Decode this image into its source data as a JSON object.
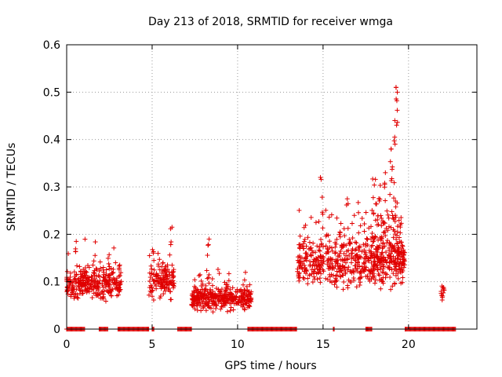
{
  "chart_data": {
    "type": "scatter",
    "title": "Day 213 of 2018, SRMTID for receiver wmga",
    "xlabel": "GPS time / hours",
    "ylabel": "SRMTID / TECUs",
    "xlim": [
      0,
      24
    ],
    "ylim": [
      0,
      0.6
    ],
    "x_ticks": [
      0,
      5,
      10,
      15,
      20
    ],
    "y_ticks": [
      0,
      0.1,
      0.2,
      0.3,
      0.4,
      0.5,
      0.6
    ],
    "x_tick_labels": [
      "0",
      "5",
      "10",
      "15",
      "20"
    ],
    "y_tick_labels": [
      "0",
      "0.1",
      "0.2",
      "0.3",
      "0.4",
      "0.5",
      "0.6"
    ],
    "grid": true,
    "marker": "+",
    "color": "#e00000",
    "series": [
      {
        "name": "SRMTID",
        "clusters": [
          {
            "x_range": [
              0.0,
              3.2
            ],
            "y_base": 0.095,
            "y_spread": 0.045,
            "n": 320
          },
          {
            "x_range": [
              4.8,
              6.3
            ],
            "y_base": 0.1,
            "y_spread": 0.05,
            "n": 140
          },
          {
            "x_range": [
              7.3,
              10.8
            ],
            "y_base": 0.065,
            "y_spread": 0.035,
            "n": 360
          },
          {
            "x_range": [
              13.5,
              19.8
            ],
            "y_base": 0.14,
            "y_spread": 0.07,
            "n": 600
          },
          {
            "x_range": [
              17.8,
              19.6
            ],
            "y_base": 0.2,
            "y_spread": 0.12,
            "n": 120
          },
          {
            "x_range": [
              21.9,
              22.1
            ],
            "y_base": 0.08,
            "y_spread": 0.02,
            "n": 12
          }
        ],
        "peaks": [
          {
            "x": 0.5,
            "y": 0.185
          },
          {
            "x": 6.1,
            "y": 0.215
          },
          {
            "x": 8.3,
            "y": 0.19
          },
          {
            "x": 14.9,
            "y": 0.32
          },
          {
            "x": 16.4,
            "y": 0.275
          },
          {
            "x": 18.6,
            "y": 0.33
          },
          {
            "x": 19.0,
            "y": 0.38
          },
          {
            "x": 19.2,
            "y": 0.44
          },
          {
            "x": 19.3,
            "y": 0.51
          },
          {
            "x": 19.3,
            "y": 0.5
          }
        ],
        "zero_ranges": [
          [
            0.0,
            1.1
          ],
          [
            1.9,
            2.4
          ],
          [
            3.0,
            4.8
          ],
          [
            5.0,
            5.1
          ],
          [
            6.5,
            7.3
          ],
          [
            10.6,
            13.5
          ],
          [
            15.6,
            15.7
          ],
          [
            17.5,
            17.9
          ],
          [
            19.8,
            22.8
          ]
        ]
      }
    ]
  }
}
